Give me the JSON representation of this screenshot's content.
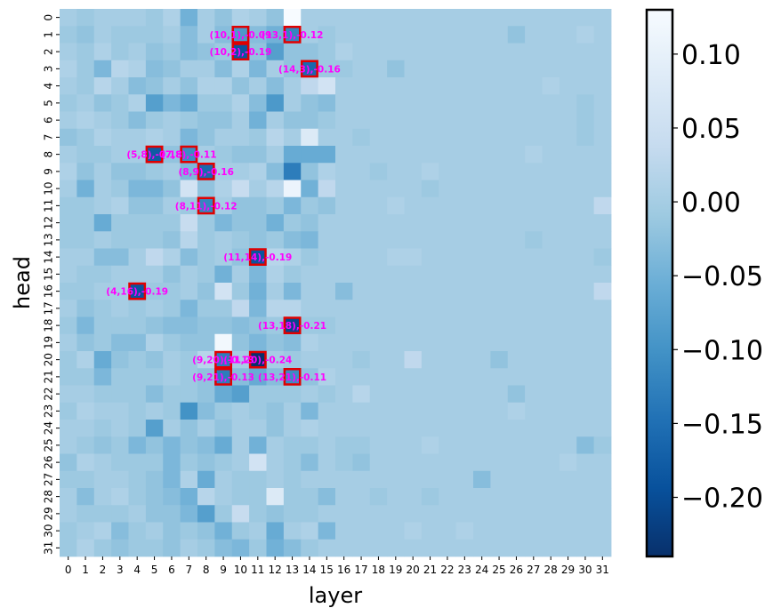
{
  "chart_data": {
    "type": "heatmap",
    "xlabel": "layer",
    "ylabel": "head",
    "x_categories": [
      "0",
      "1",
      "2",
      "3",
      "4",
      "5",
      "6",
      "7",
      "8",
      "9",
      "10",
      "11",
      "12",
      "13",
      "14",
      "15",
      "16",
      "17",
      "18",
      "19",
      "20",
      "21",
      "22",
      "23",
      "24",
      "25",
      "26",
      "27",
      "28",
      "29",
      "30",
      "31"
    ],
    "y_categories": [
      "0",
      "1",
      "2",
      "3",
      "4",
      "5",
      "6",
      "7",
      "8",
      "9",
      "10",
      "11",
      "12",
      "13",
      "14",
      "15",
      "16",
      "17",
      "18",
      "19",
      "20",
      "21",
      "22",
      "23",
      "24",
      "25",
      "26",
      "27",
      "28",
      "29",
      "30",
      "31"
    ],
    "colormap": "Blues_r",
    "vmin": -0.24,
    "vmax": 0.13,
    "colorbar_ticks": [
      "0.10",
      "0.05",
      "0.00",
      "−0.05",
      "−0.10",
      "−0.15",
      "−0.20"
    ],
    "colorbar_tick_values": [
      0.1,
      0.05,
      0.0,
      -0.05,
      -0.1,
      -0.15,
      -0.2
    ],
    "highlighted_cells": [
      {
        "layer": 10,
        "head": 1,
        "value": -0.09,
        "label": "(10,1),-0.09"
      },
      {
        "layer": 13,
        "head": 1,
        "value": -0.12,
        "label": "(13,1),-0.12"
      },
      {
        "layer": 10,
        "head": 2,
        "value": -0.19,
        "label": "(10,2),-0.19"
      },
      {
        "layer": 14,
        "head": 3,
        "value": -0.16,
        "label": "(14,3),-0.16"
      },
      {
        "layer": 5,
        "head": 8,
        "value": -0.18,
        "label": "(5,8),-0.18"
      },
      {
        "layer": 7,
        "head": 8,
        "value": -0.11,
        "label": "(7,8),-0.11"
      },
      {
        "layer": 8,
        "head": 9,
        "value": -0.16,
        "label": "(8,9),-0.16"
      },
      {
        "layer": 8,
        "head": 11,
        "value": -0.12,
        "label": "(8,11),-0.12"
      },
      {
        "layer": 11,
        "head": 14,
        "value": -0.19,
        "label": "(11,14),-0.19"
      },
      {
        "layer": 4,
        "head": 16,
        "value": -0.19,
        "label": "(4,16),-0.19"
      },
      {
        "layer": 13,
        "head": 18,
        "value": -0.21,
        "label": "(13,18),-0.21"
      },
      {
        "layer": 9,
        "head": 20,
        "value": -0.13,
        "label": "(9,20),-0.13"
      },
      {
        "layer": 11,
        "head": 20,
        "value": -0.24,
        "label": "(11,20),-0.24"
      },
      {
        "layer": 9,
        "head": 21,
        "value": -0.13,
        "label": "(9,21),-0.13"
      },
      {
        "layer": 13,
        "head": 21,
        "value": -0.11,
        "label": "(13,21),-0.11"
      }
    ],
    "values": [
      [
        0.0,
        -0.01,
        0.0,
        0.0,
        0.0,
        -0.01,
        0.01,
        -0.05,
        0.0,
        -0.02,
        0.01,
        0.0,
        -0.02,
        0.13,
        0.0,
        0.0,
        0.0,
        0.0,
        0.0,
        0.0,
        0.0,
        0.0,
        0.0,
        0.0,
        0.0,
        0.0,
        0.0,
        0.0,
        0.0,
        0.0,
        0.0,
        0.0
      ],
      [
        -0.01,
        -0.02,
        0.0,
        -0.01,
        -0.01,
        -0.01,
        0.0,
        -0.03,
        0.0,
        -0.03,
        -0.09,
        -0.03,
        -0.05,
        -0.12,
        0.0,
        -0.01,
        0.0,
        0.0,
        0.0,
        0.0,
        0.0,
        0.0,
        0.0,
        0.0,
        0.0,
        0.0,
        -0.02,
        0.0,
        0.0,
        0.0,
        0.01,
        0.0
      ],
      [
        0.0,
        -0.01,
        0.01,
        -0.01,
        0.0,
        -0.02,
        -0.01,
        -0.03,
        -0.02,
        -0.01,
        -0.19,
        -0.02,
        -0.08,
        -0.02,
        -0.02,
        -0.01,
        0.01,
        0.0,
        0.0,
        0.0,
        0.0,
        0.0,
        0.0,
        0.0,
        0.0,
        0.0,
        0.0,
        0.0,
        0.0,
        0.0,
        0.0,
        0.0
      ],
      [
        0.01,
        -0.01,
        -0.04,
        0.02,
        0.01,
        -0.03,
        -0.02,
        0.0,
        0.0,
        -0.03,
        0.01,
        -0.04,
        0.0,
        -0.02,
        -0.16,
        -0.01,
        -0.01,
        0.0,
        0.0,
        -0.02,
        0.0,
        0.0,
        0.0,
        0.0,
        0.0,
        0.0,
        0.0,
        0.0,
        0.0,
        0.0,
        0.0,
        0.0
      ],
      [
        0.0,
        -0.01,
        0.02,
        0.0,
        -0.03,
        -0.02,
        0.0,
        -0.02,
        0.01,
        0.01,
        -0.02,
        0.0,
        -0.03,
        0.0,
        0.03,
        0.06,
        0.0,
        0.0,
        0.0,
        0.0,
        0.0,
        0.0,
        0.0,
        0.0,
        0.0,
        0.0,
        0.0,
        0.0,
        0.01,
        0.0,
        0.0,
        0.0
      ],
      [
        -0.01,
        0.0,
        -0.02,
        -0.01,
        0.01,
        -0.08,
        -0.04,
        -0.06,
        -0.01,
        -0.01,
        0.01,
        -0.03,
        -0.09,
        0.0,
        -0.02,
        -0.03,
        0.0,
        0.0,
        0.0,
        0.0,
        0.0,
        0.0,
        0.0,
        0.0,
        0.0,
        0.0,
        0.0,
        0.0,
        0.0,
        0.0,
        -0.01,
        0.0
      ],
      [
        0.0,
        0.01,
        0.0,
        -0.01,
        -0.03,
        -0.01,
        0.0,
        -0.01,
        -0.02,
        -0.02,
        0.0,
        -0.05,
        0.0,
        -0.02,
        -0.02,
        -0.01,
        0.0,
        0.0,
        0.0,
        0.0,
        0.0,
        0.0,
        0.0,
        0.0,
        0.0,
        0.0,
        0.0,
        0.0,
        0.0,
        0.0,
        -0.01,
        0.0
      ],
      [
        -0.02,
        -0.01,
        0.01,
        0.0,
        0.0,
        0.01,
        0.0,
        -0.04,
        -0.02,
        0.0,
        0.0,
        -0.01,
        0.02,
        0.0,
        0.08,
        0.0,
        0.0,
        -0.01,
        0.0,
        0.0,
        0.0,
        0.0,
        0.0,
        0.0,
        0.0,
        0.0,
        0.0,
        0.0,
        0.0,
        0.0,
        -0.01,
        0.0
      ],
      [
        0.0,
        -0.01,
        -0.01,
        0.0,
        0.0,
        -0.18,
        -0.02,
        -0.11,
        0.0,
        -0.01,
        -0.02,
        -0.02,
        0.0,
        -0.06,
        -0.06,
        -0.06,
        0.0,
        0.0,
        0.0,
        0.0,
        0.0,
        0.0,
        0.0,
        0.0,
        0.0,
        0.0,
        0.0,
        0.01,
        0.0,
        0.0,
        0.0,
        0.0
      ],
      [
        0.01,
        -0.02,
        0.0,
        -0.02,
        -0.02,
        -0.01,
        0.0,
        -0.04,
        -0.16,
        0.0,
        0.0,
        0.01,
        -0.03,
        -0.13,
        -0.02,
        0.01,
        0.0,
        0.0,
        -0.01,
        0.0,
        0.0,
        0.01,
        0.0,
        0.0,
        0.0,
        0.0,
        0.0,
        0.0,
        0.0,
        0.0,
        0.0,
        0.0
      ],
      [
        0.0,
        -0.05,
        0.0,
        -0.01,
        -0.04,
        -0.04,
        -0.02,
        0.06,
        -0.02,
        0.01,
        0.04,
        0.0,
        0.02,
        0.11,
        -0.05,
        0.03,
        0.0,
        0.0,
        0.0,
        0.0,
        0.0,
        -0.01,
        0.0,
        0.0,
        0.0,
        0.0,
        0.0,
        0.0,
        0.0,
        0.0,
        0.0,
        0.0
      ],
      [
        -0.01,
        -0.01,
        0.0,
        0.01,
        -0.02,
        -0.02,
        0.0,
        -0.01,
        -0.12,
        0.0,
        -0.02,
        -0.02,
        -0.01,
        -0.04,
        -0.01,
        -0.02,
        0.0,
        0.0,
        0.0,
        0.01,
        0.0,
        0.0,
        0.0,
        0.0,
        0.0,
        0.0,
        0.0,
        0.0,
        0.0,
        0.0,
        0.0,
        0.03
      ],
      [
        -0.01,
        -0.01,
        -0.06,
        -0.01,
        -0.01,
        -0.01,
        -0.01,
        0.04,
        -0.01,
        -0.04,
        -0.02,
        -0.02,
        -0.05,
        -0.01,
        -0.02,
        0.0,
        0.0,
        0.0,
        0.0,
        0.0,
        0.0,
        0.0,
        0.0,
        0.0,
        0.0,
        0.0,
        0.0,
        0.0,
        0.0,
        0.0,
        0.0,
        0.0
      ],
      [
        -0.01,
        -0.01,
        0.0,
        -0.01,
        -0.01,
        -0.01,
        -0.02,
        0.02,
        -0.01,
        0.0,
        -0.01,
        -0.02,
        -0.01,
        -0.03,
        -0.04,
        0.0,
        0.0,
        0.0,
        0.0,
        0.0,
        0.0,
        0.0,
        0.0,
        0.0,
        0.0,
        0.0,
        0.0,
        -0.01,
        0.0,
        0.0,
        0.0,
        0.0
      ],
      [
        0.0,
        0.0,
        -0.03,
        -0.03,
        0.0,
        0.03,
        0.01,
        -0.03,
        -0.01,
        0.0,
        -0.02,
        -0.19,
        0.02,
        0.01,
        -0.01,
        0.0,
        0.0,
        0.0,
        0.0,
        0.01,
        0.01,
        0.0,
        0.0,
        0.0,
        0.0,
        0.0,
        0.0,
        0.0,
        0.0,
        0.0,
        0.0,
        -0.01
      ],
      [
        0.0,
        -0.01,
        -0.01,
        0.0,
        0.0,
        0.0,
        -0.02,
        0.0,
        -0.01,
        -0.05,
        0.0,
        -0.04,
        0.01,
        -0.01,
        0.0,
        0.0,
        0.0,
        0.0,
        0.0,
        0.0,
        0.0,
        0.0,
        0.0,
        0.0,
        0.0,
        0.0,
        0.0,
        0.0,
        0.0,
        0.0,
        0.0,
        0.0
      ],
      [
        -0.01,
        -0.01,
        0.0,
        0.0,
        -0.19,
        -0.01,
        -0.01,
        0.0,
        -0.02,
        0.06,
        -0.01,
        -0.05,
        0.0,
        -0.04,
        0.0,
        0.0,
        -0.03,
        0.0,
        0.0,
        0.0,
        0.0,
        0.0,
        0.0,
        0.0,
        0.0,
        0.0,
        0.0,
        0.0,
        0.0,
        0.0,
        0.0,
        0.03
      ],
      [
        0.0,
        -0.02,
        -0.01,
        0.0,
        -0.01,
        0.0,
        -0.01,
        -0.04,
        -0.01,
        -0.01,
        0.03,
        -0.04,
        0.02,
        0.02,
        0.0,
        0.0,
        0.0,
        0.0,
        0.0,
        0.0,
        0.0,
        0.0,
        0.0,
        0.0,
        0.0,
        0.0,
        0.0,
        0.0,
        0.0,
        0.0,
        0.0,
        0.0
      ],
      [
        -0.01,
        -0.04,
        -0.01,
        -0.01,
        -0.01,
        -0.02,
        -0.03,
        -0.03,
        -0.02,
        -0.02,
        -0.03,
        -0.02,
        -0.01,
        -0.21,
        -0.01,
        -0.01,
        0.0,
        0.0,
        0.0,
        0.0,
        0.0,
        0.0,
        0.0,
        0.0,
        0.0,
        0.0,
        0.0,
        0.0,
        0.0,
        0.0,
        0.0,
        0.0
      ],
      [
        0.0,
        -0.02,
        -0.01,
        -0.03,
        -0.03,
        0.01,
        -0.01,
        -0.02,
        -0.02,
        0.12,
        -0.02,
        -0.04,
        -0.02,
        -0.03,
        0.01,
        0.0,
        0.0,
        0.0,
        0.0,
        0.0,
        0.0,
        0.0,
        0.0,
        0.0,
        0.0,
        0.0,
        0.0,
        0.0,
        0.0,
        0.0,
        0.0,
        0.0
      ],
      [
        -0.01,
        0.01,
        -0.06,
        -0.02,
        -0.01,
        -0.02,
        0.0,
        -0.01,
        0.02,
        -0.13,
        0.0,
        -0.24,
        0.0,
        -0.01,
        0.0,
        0.0,
        0.0,
        -0.01,
        0.0,
        0.0,
        0.03,
        0.0,
        0.0,
        0.0,
        0.0,
        -0.02,
        0.0,
        0.0,
        0.0,
        0.0,
        0.0,
        0.0
      ],
      [
        -0.01,
        -0.01,
        -0.04,
        -0.01,
        -0.01,
        -0.01,
        0.0,
        -0.01,
        -0.02,
        -0.13,
        -0.03,
        -0.06,
        -0.03,
        -0.11,
        -0.02,
        0.01,
        0.0,
        0.0,
        0.0,
        0.0,
        0.0,
        0.0,
        0.0,
        0.0,
        0.0,
        0.0,
        0.0,
        0.0,
        0.0,
        0.0,
        0.0,
        0.0
      ],
      [
        0.0,
        0.0,
        -0.01,
        -0.01,
        -0.01,
        -0.03,
        -0.01,
        -0.01,
        -0.02,
        -0.06,
        -0.08,
        -0.01,
        -0.01,
        -0.01,
        0.0,
        -0.01,
        0.0,
        0.02,
        0.0,
        0.0,
        0.0,
        0.0,
        0.0,
        0.0,
        0.0,
        0.0,
        -0.02,
        0.0,
        0.0,
        0.0,
        0.0,
        0.0
      ],
      [
        -0.01,
        0.01,
        0.0,
        0.0,
        -0.01,
        0.0,
        -0.01,
        -0.1,
        -0.03,
        -0.01,
        0.0,
        -0.01,
        -0.02,
        0.0,
        -0.04,
        0.0,
        0.0,
        0.0,
        0.0,
        0.0,
        0.0,
        0.0,
        0.0,
        0.0,
        0.0,
        0.0,
        0.01,
        0.0,
        0.0,
        0.0,
        0.0,
        0.0
      ],
      [
        0.0,
        0.0,
        -0.01,
        0.0,
        -0.01,
        -0.08,
        0.0,
        -0.02,
        0.0,
        -0.02,
        0.0,
        0.0,
        -0.02,
        0.0,
        0.01,
        0.0,
        0.0,
        0.0,
        0.0,
        0.0,
        0.0,
        0.0,
        0.0,
        0.0,
        0.0,
        0.0,
        0.0,
        0.0,
        0.0,
        0.0,
        0.0,
        0.0
      ],
      [
        0.0,
        -0.01,
        -0.02,
        -0.01,
        -0.04,
        -0.02,
        -0.04,
        -0.02,
        -0.03,
        -0.06,
        0.0,
        -0.05,
        0.0,
        -0.01,
        -0.01,
        0.0,
        -0.01,
        -0.01,
        0.0,
        0.0,
        0.0,
        0.01,
        0.0,
        0.0,
        0.0,
        0.0,
        0.0,
        0.0,
        0.0,
        0.0,
        -0.03,
        -0.01
      ],
      [
        -0.02,
        0.01,
        0.0,
        -0.01,
        -0.01,
        -0.01,
        -0.04,
        -0.01,
        -0.02,
        -0.01,
        0.0,
        0.06,
        0.0,
        -0.01,
        -0.03,
        0.0,
        -0.01,
        -0.02,
        0.0,
        0.0,
        0.0,
        0.0,
        0.0,
        0.0,
        0.0,
        0.0,
        0.0,
        0.0,
        0.0,
        0.01,
        0.0,
        0.0
      ],
      [
        -0.01,
        -0.01,
        0.0,
        0.0,
        -0.01,
        -0.02,
        -0.04,
        0.01,
        -0.06,
        0.0,
        -0.01,
        -0.01,
        0.0,
        -0.01,
        0.0,
        0.0,
        0.0,
        0.0,
        0.0,
        0.0,
        0.0,
        0.0,
        0.0,
        0.0,
        -0.03,
        0.0,
        0.0,
        0.0,
        0.0,
        0.0,
        0.0,
        0.0
      ],
      [
        0.0,
        -0.03,
        0.0,
        0.01,
        -0.01,
        -0.02,
        -0.03,
        -0.05,
        0.02,
        0.0,
        -0.01,
        -0.01,
        0.08,
        -0.01,
        -0.01,
        -0.03,
        0.0,
        0.0,
        -0.01,
        0.0,
        0.0,
        -0.01,
        0.0,
        0.0,
        0.0,
        0.0,
        0.0,
        0.0,
        0.0,
        0.0,
        0.0,
        0.0
      ],
      [
        0.0,
        -0.01,
        -0.01,
        -0.01,
        0.0,
        -0.02,
        -0.02,
        -0.04,
        -0.08,
        -0.01,
        0.04,
        -0.01,
        -0.02,
        -0.01,
        -0.01,
        0.0,
        0.0,
        0.0,
        0.0,
        0.0,
        0.0,
        0.0,
        0.0,
        0.0,
        0.0,
        0.0,
        0.0,
        0.0,
        0.0,
        0.0,
        0.0,
        0.0
      ],
      [
        -0.01,
        0.0,
        0.01,
        -0.03,
        -0.01,
        0.0,
        -0.02,
        -0.01,
        -0.02,
        -0.05,
        -0.01,
        0.0,
        -0.06,
        0.0,
        0.01,
        -0.04,
        0.0,
        0.0,
        0.0,
        0.0,
        0.01,
        0.0,
        0.0,
        0.01,
        0.0,
        0.0,
        0.0,
        0.0,
        0.0,
        0.0,
        0.0,
        0.0
      ],
      [
        -0.01,
        0.01,
        -0.01,
        -0.02,
        -0.01,
        -0.01,
        -0.02,
        0.0,
        -0.01,
        -0.03,
        -0.04,
        -0.01,
        -0.05,
        -0.03,
        -0.01,
        0.0,
        0.0,
        0.0,
        0.0,
        0.0,
        0.0,
        0.0,
        0.0,
        0.0,
        0.0,
        0.0,
        0.0,
        0.0,
        0.0,
        0.0,
        0.0,
        0.0
      ]
    ]
  }
}
